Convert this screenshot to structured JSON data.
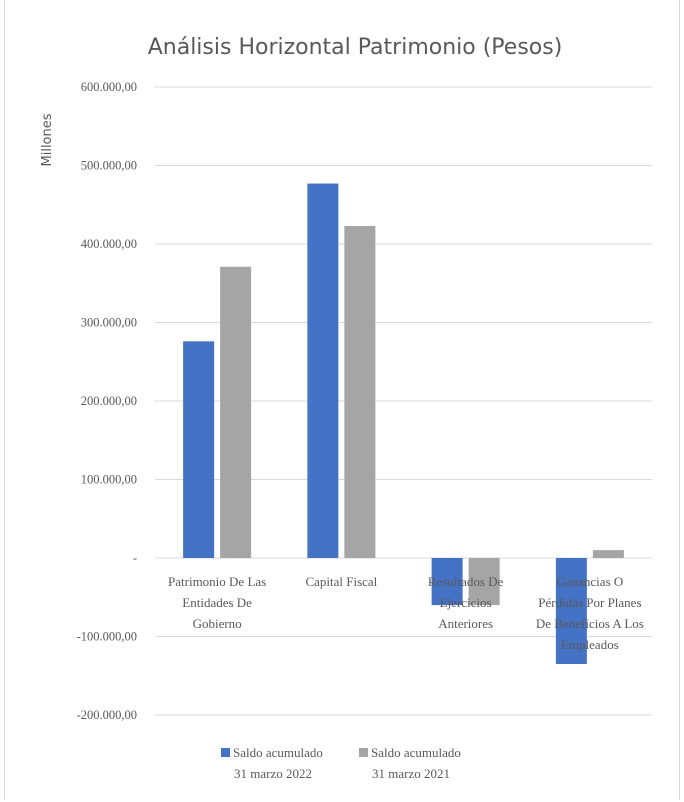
{
  "chart_data": {
    "type": "bar",
    "title": "Análisis Horizontal Patrimonio (Pesos)",
    "ylabel": "Millones",
    "xlabel": "",
    "ylim": [
      -200000,
      600000
    ],
    "yticks": [
      {
        "value": 600000,
        "label": "600.000,00"
      },
      {
        "value": 500000,
        "label": "500.000,00"
      },
      {
        "value": 400000,
        "label": "400.000,00"
      },
      {
        "value": 300000,
        "label": "300.000,00"
      },
      {
        "value": 200000,
        "label": "200.000,00"
      },
      {
        "value": 100000,
        "label": "100.000,00"
      },
      {
        "value": 0,
        "label": "-"
      },
      {
        "value": -100000,
        "label": "-100.000,00"
      },
      {
        "value": -200000,
        "label": "-200.000,00"
      }
    ],
    "categories": [
      [
        "Patrimonio De Las",
        "Entidades De",
        "Gobierno"
      ],
      [
        "Capital Fiscal"
      ],
      [
        "Resultados De",
        "Ejercicios",
        "Anteriores"
      ],
      [
        "Ganancias O",
        "Pérdidas Por Planes",
        "De Beneficios A Los",
        "Empleados"
      ]
    ],
    "series": [
      {
        "name": "Saldo acumulado 31 marzo 2022",
        "legend_lines": [
          "Saldo acumulado",
          "31 marzo 2022"
        ],
        "color": "#4472c4",
        "values": [
          276000,
          477000,
          -60000,
          -135000
        ]
      },
      {
        "name": "Saldo acumulado 31 marzo 2021",
        "legend_lines": [
          "Saldo acumulado",
          "31 marzo 2021"
        ],
        "color": "#a5a5a5",
        "values": [
          371000,
          423000,
          -60000,
          10000
        ]
      }
    ],
    "grid": true,
    "legend_position": "bottom"
  }
}
